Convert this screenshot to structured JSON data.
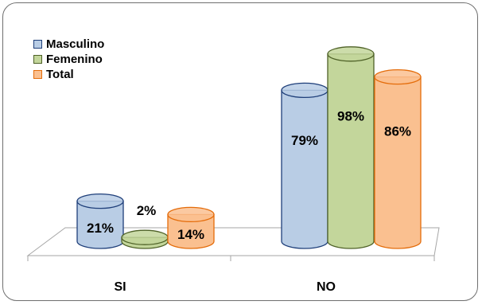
{
  "chart_data": {
    "type": "bar",
    "title": "",
    "xlabel": "",
    "ylabel": "",
    "ylim": [
      0,
      100
    ],
    "grid": false,
    "legend_position": "top-left",
    "categories": [
      "SI",
      "NO"
    ],
    "series": [
      {
        "name": "Masculino",
        "values": [
          21,
          79
        ],
        "labels": [
          "21%",
          "79%"
        ],
        "color": "#b9cde5",
        "edge": "#1f3f7a"
      },
      {
        "name": "Femenino",
        "values": [
          2,
          98
        ],
        "labels": [
          "2%",
          "98%"
        ],
        "color": "#c3d69b",
        "edge": "#4f6228"
      },
      {
        "name": "Total",
        "values": [
          14,
          86
        ],
        "labels": [
          "14%",
          "86%"
        ],
        "color": "#fac090",
        "edge": "#e46c0a"
      }
    ]
  }
}
